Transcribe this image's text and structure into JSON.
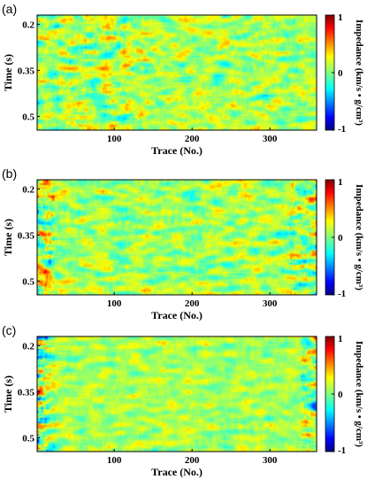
{
  "chart_data": [
    {
      "type": "heatmap",
      "panel_label": "(a)",
      "xlabel": "Trace (No.)",
      "ylabel": "Time (s)",
      "xlim": [
        1,
        360
      ],
      "ylim": [
        0.17,
        0.545
      ],
      "xticks": [
        100,
        200,
        300
      ],
      "yticks": [
        0.2,
        0.35,
        0.5
      ],
      "ytick_labels": [
        "0.2",
        "0.35",
        "0.5"
      ],
      "colorbar": {
        "label": "Impedance (km/s • g/cm³)",
        "range": [
          -1,
          1
        ],
        "ticks": [
          1,
          0,
          -1
        ],
        "colormap": "jet"
      },
      "pattern": "fine-scale mottled texture; stronger yellow/orange streaks on left side near trace 0-150",
      "seed": 11
    },
    {
      "type": "heatmap",
      "panel_label": "(b)",
      "xlabel": "Trace (No.)",
      "ylabel": "Time (s)",
      "xlim": [
        1,
        360
      ],
      "ylim": [
        0.17,
        0.545
      ],
      "xticks": [
        100,
        200,
        300
      ],
      "yticks": [
        0.2,
        0.35,
        0.5
      ],
      "ytick_labels": [
        "0.2",
        "0.35",
        "0.5"
      ],
      "colorbar": {
        "label": "Impedance (km/s • g/cm³)",
        "range": [
          -1,
          1
        ],
        "ticks": [
          1,
          0,
          -1
        ],
        "colormap": "jet"
      },
      "pattern": "horizontally layered texture; stronger anomalies near left edge and near trace 330-360",
      "seed": 23
    },
    {
      "type": "heatmap",
      "panel_label": "(c)",
      "xlabel": "Trace (No.)",
      "ylabel": "Time (s)",
      "xlim": [
        1,
        360
      ],
      "ylim": [
        0.17,
        0.545
      ],
      "xticks": [
        100,
        200,
        300
      ],
      "yticks": [
        0.2,
        0.35,
        0.5
      ],
      "ytick_labels": [
        "0.2",
        "0.35",
        "0.5"
      ],
      "colorbar": {
        "label": "Impedance (km/s • g/cm³)",
        "range": [
          -1,
          1
        ],
        "ticks": [
          1,
          0,
          -1
        ],
        "colormap": "jet"
      },
      "pattern": "mostly cyan/green background; strong red/blue anomalies along left edge (trace 1-30) and right edge (trace 340-360)",
      "seed": 37
    }
  ]
}
